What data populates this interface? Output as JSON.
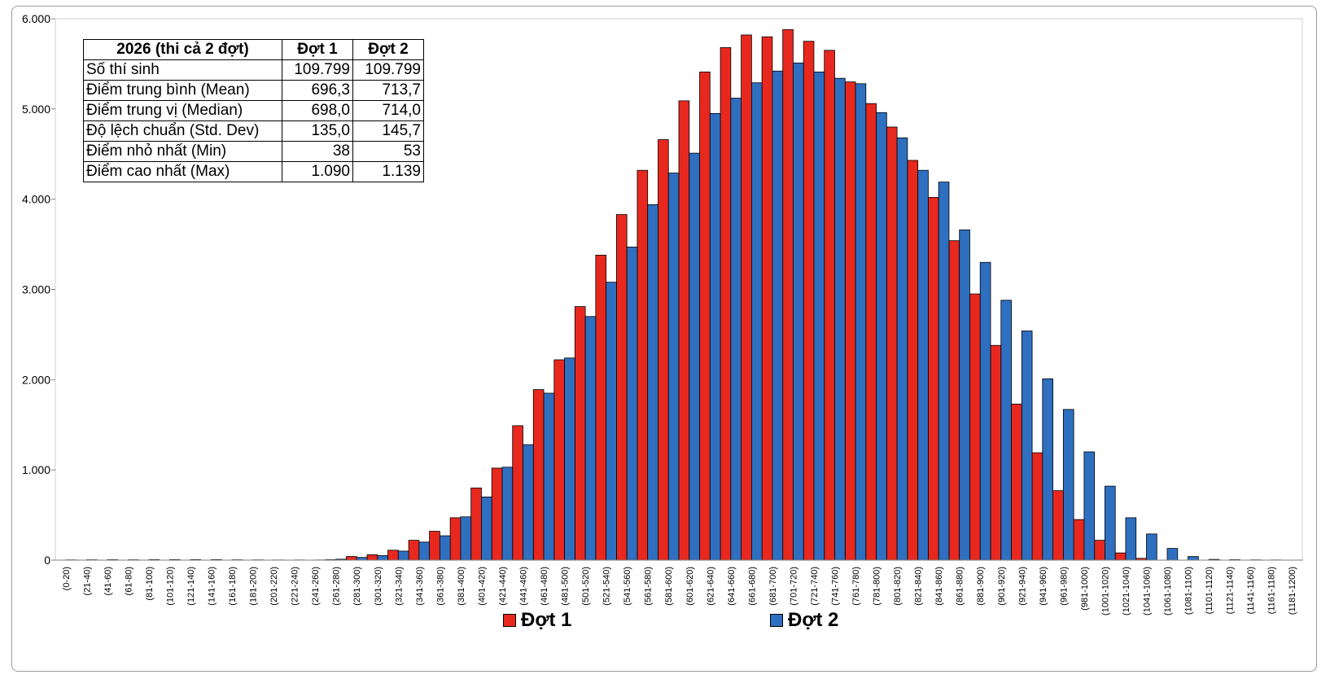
{
  "chart_data": {
    "type": "bar",
    "categories": [
      "(0-20)",
      "(21-40)",
      "(41-60)",
      "(61-80)",
      "(81-100)",
      "(101-120)",
      "(121-140)",
      "(141-160)",
      "(161-180)",
      "(181-200)",
      "(201-220)",
      "(221-240)",
      "(241-260)",
      "(261-280)",
      "(281-300)",
      "(301-320)",
      "(321-340)",
      "(341-360)",
      "(361-380)",
      "(381-400)",
      "(401-420)",
      "(421-440)",
      "(441-460)",
      "(461-480)",
      "(481-500)",
      "(501-520)",
      "(521-540)",
      "(541-560)",
      "(561-580)",
      "(581-600)",
      "(601-620)",
      "(621-640)",
      "(641-660)",
      "(661-680)",
      "(681-700)",
      "(701-720)",
      "(721-740)",
      "(741-760)",
      "(761-780)",
      "(781-800)",
      "(801-820)",
      "(821-840)",
      "(841-860)",
      "(861-880)",
      "(881-900)",
      "(901-920)",
      "(921-940)",
      "(941-960)",
      "(961-980)",
      "(981-1000)",
      "(1001-1020)",
      "(1021-1040)",
      "(1041-1060)",
      "(1061-1080)",
      "(1081-1100)",
      "(1101-1120)",
      "(1121-1140)",
      "(1141-1160)",
      "(1161-1180)",
      "(1181-1200)"
    ],
    "series": [
      {
        "name": "Đợt 1",
        "color": "#e8281e",
        "values": [
          0,
          0,
          0,
          0,
          0,
          0,
          0,
          0,
          0,
          0,
          0,
          0,
          0,
          5,
          40,
          60,
          110,
          220,
          320,
          470,
          800,
          1020,
          1490,
          1890,
          2220,
          2810,
          3380,
          3830,
          4320,
          4660,
          5090,
          5410,
          5680,
          5820,
          5800,
          5880,
          5750,
          5650,
          5300,
          5060,
          4800,
          4430,
          4020,
          3540,
          2950,
          2380,
          1730,
          1190,
          770,
          450,
          220,
          80,
          20,
          0,
          0,
          0,
          0,
          0,
          0,
          0
        ]
      },
      {
        "name": "Đợt 2",
        "color": "#2e6fc0",
        "values": [
          3,
          4,
          5,
          4,
          6,
          6,
          6,
          6,
          4,
          3,
          2,
          2,
          2,
          10,
          30,
          50,
          100,
          200,
          270,
          480,
          700,
          1030,
          1280,
          1850,
          2240,
          2700,
          3080,
          3470,
          3940,
          4290,
          4510,
          4950,
          5120,
          5290,
          5420,
          5510,
          5410,
          5340,
          5280,
          4960,
          4680,
          4320,
          4190,
          3660,
          3300,
          2880,
          2540,
          2010,
          1670,
          1200,
          820,
          470,
          290,
          130,
          40,
          8,
          5,
          3,
          2,
          1
        ]
      }
    ],
    "ylim": [
      0,
      6000
    ],
    "yticks": [
      "0",
      "1.000",
      "2.000",
      "3.000",
      "4.000",
      "5.000",
      "6.000"
    ],
    "grid": false,
    "legend_position": "bottom"
  },
  "stats_table": {
    "headers": [
      "2026 (thi cả 2 đợt)",
      "Đợt 1",
      "Đợt 2"
    ],
    "rows": [
      {
        "label": "Số thí sinh",
        "v1": "109.799",
        "v2": "109.799"
      },
      {
        "label": "Điểm trung bình (Mean)",
        "v1": "696,3",
        "v2": "713,7"
      },
      {
        "label": "Điểm trung vị (Median)",
        "v1": "698,0",
        "v2": "714,0"
      },
      {
        "label": "Độ lệch chuẩn (Std. Dev)",
        "v1": "135,0",
        "v2": "145,7"
      },
      {
        "label": "Điểm nhỏ nhất (Min)",
        "v1": "38",
        "v2": "53"
      },
      {
        "label": "Điểm cao nhất (Max)",
        "v1": "1.090",
        "v2": "1.139"
      }
    ]
  }
}
